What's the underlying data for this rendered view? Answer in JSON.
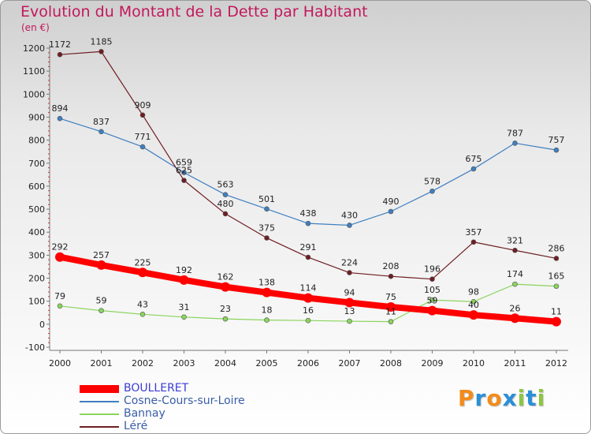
{
  "title": "Evolution du Montant de la Dette par Habitant",
  "unit_label": "(en €)",
  "logo": {
    "letters": [
      "P",
      "r",
      "o",
      "x",
      "i",
      "t",
      "i"
    ],
    "colors": [
      "#f28c1b",
      "#2a8fd6",
      "#f28c1b",
      "#2a8fd6",
      "#8cc63f",
      "#2a8fd6",
      "#8cc63f"
    ]
  },
  "chart_data": {
    "type": "line",
    "x": [
      "2000",
      "2001",
      "2002",
      "2003",
      "2004",
      "2005",
      "2006",
      "2007",
      "2008",
      "2009",
      "2010",
      "2011",
      "2012"
    ],
    "ylim": [
      -100,
      1200
    ],
    "yticks": [
      -100,
      0,
      100,
      200,
      300,
      400,
      500,
      600,
      700,
      800,
      900,
      1000,
      1100,
      1200
    ],
    "grid": false,
    "legend_position": "bottom-left",
    "series": [
      {
        "name": "BOULLERET",
        "color": "#ff0000",
        "values": [
          292,
          257,
          225,
          192,
          162,
          138,
          114,
          94,
          75,
          59,
          40,
          26,
          11
        ]
      },
      {
        "name": "Cosne-Cours-sur-Loire",
        "color": "#3f7fbf",
        "values": [
          894,
          837,
          771,
          659,
          563,
          501,
          438,
          430,
          490,
          578,
          675,
          787,
          757
        ]
      },
      {
        "name": "Bannay",
        "color": "#8ad45c",
        "values": [
          79,
          59,
          43,
          31,
          23,
          18,
          16,
          13,
          11,
          105,
          98,
          174,
          165
        ]
      },
      {
        "name": "Léré",
        "color": "#6e1e23",
        "values": [
          1172,
          1185,
          909,
          625,
          480,
          375,
          291,
          224,
          208,
          196,
          357,
          321,
          286
        ]
      }
    ]
  }
}
